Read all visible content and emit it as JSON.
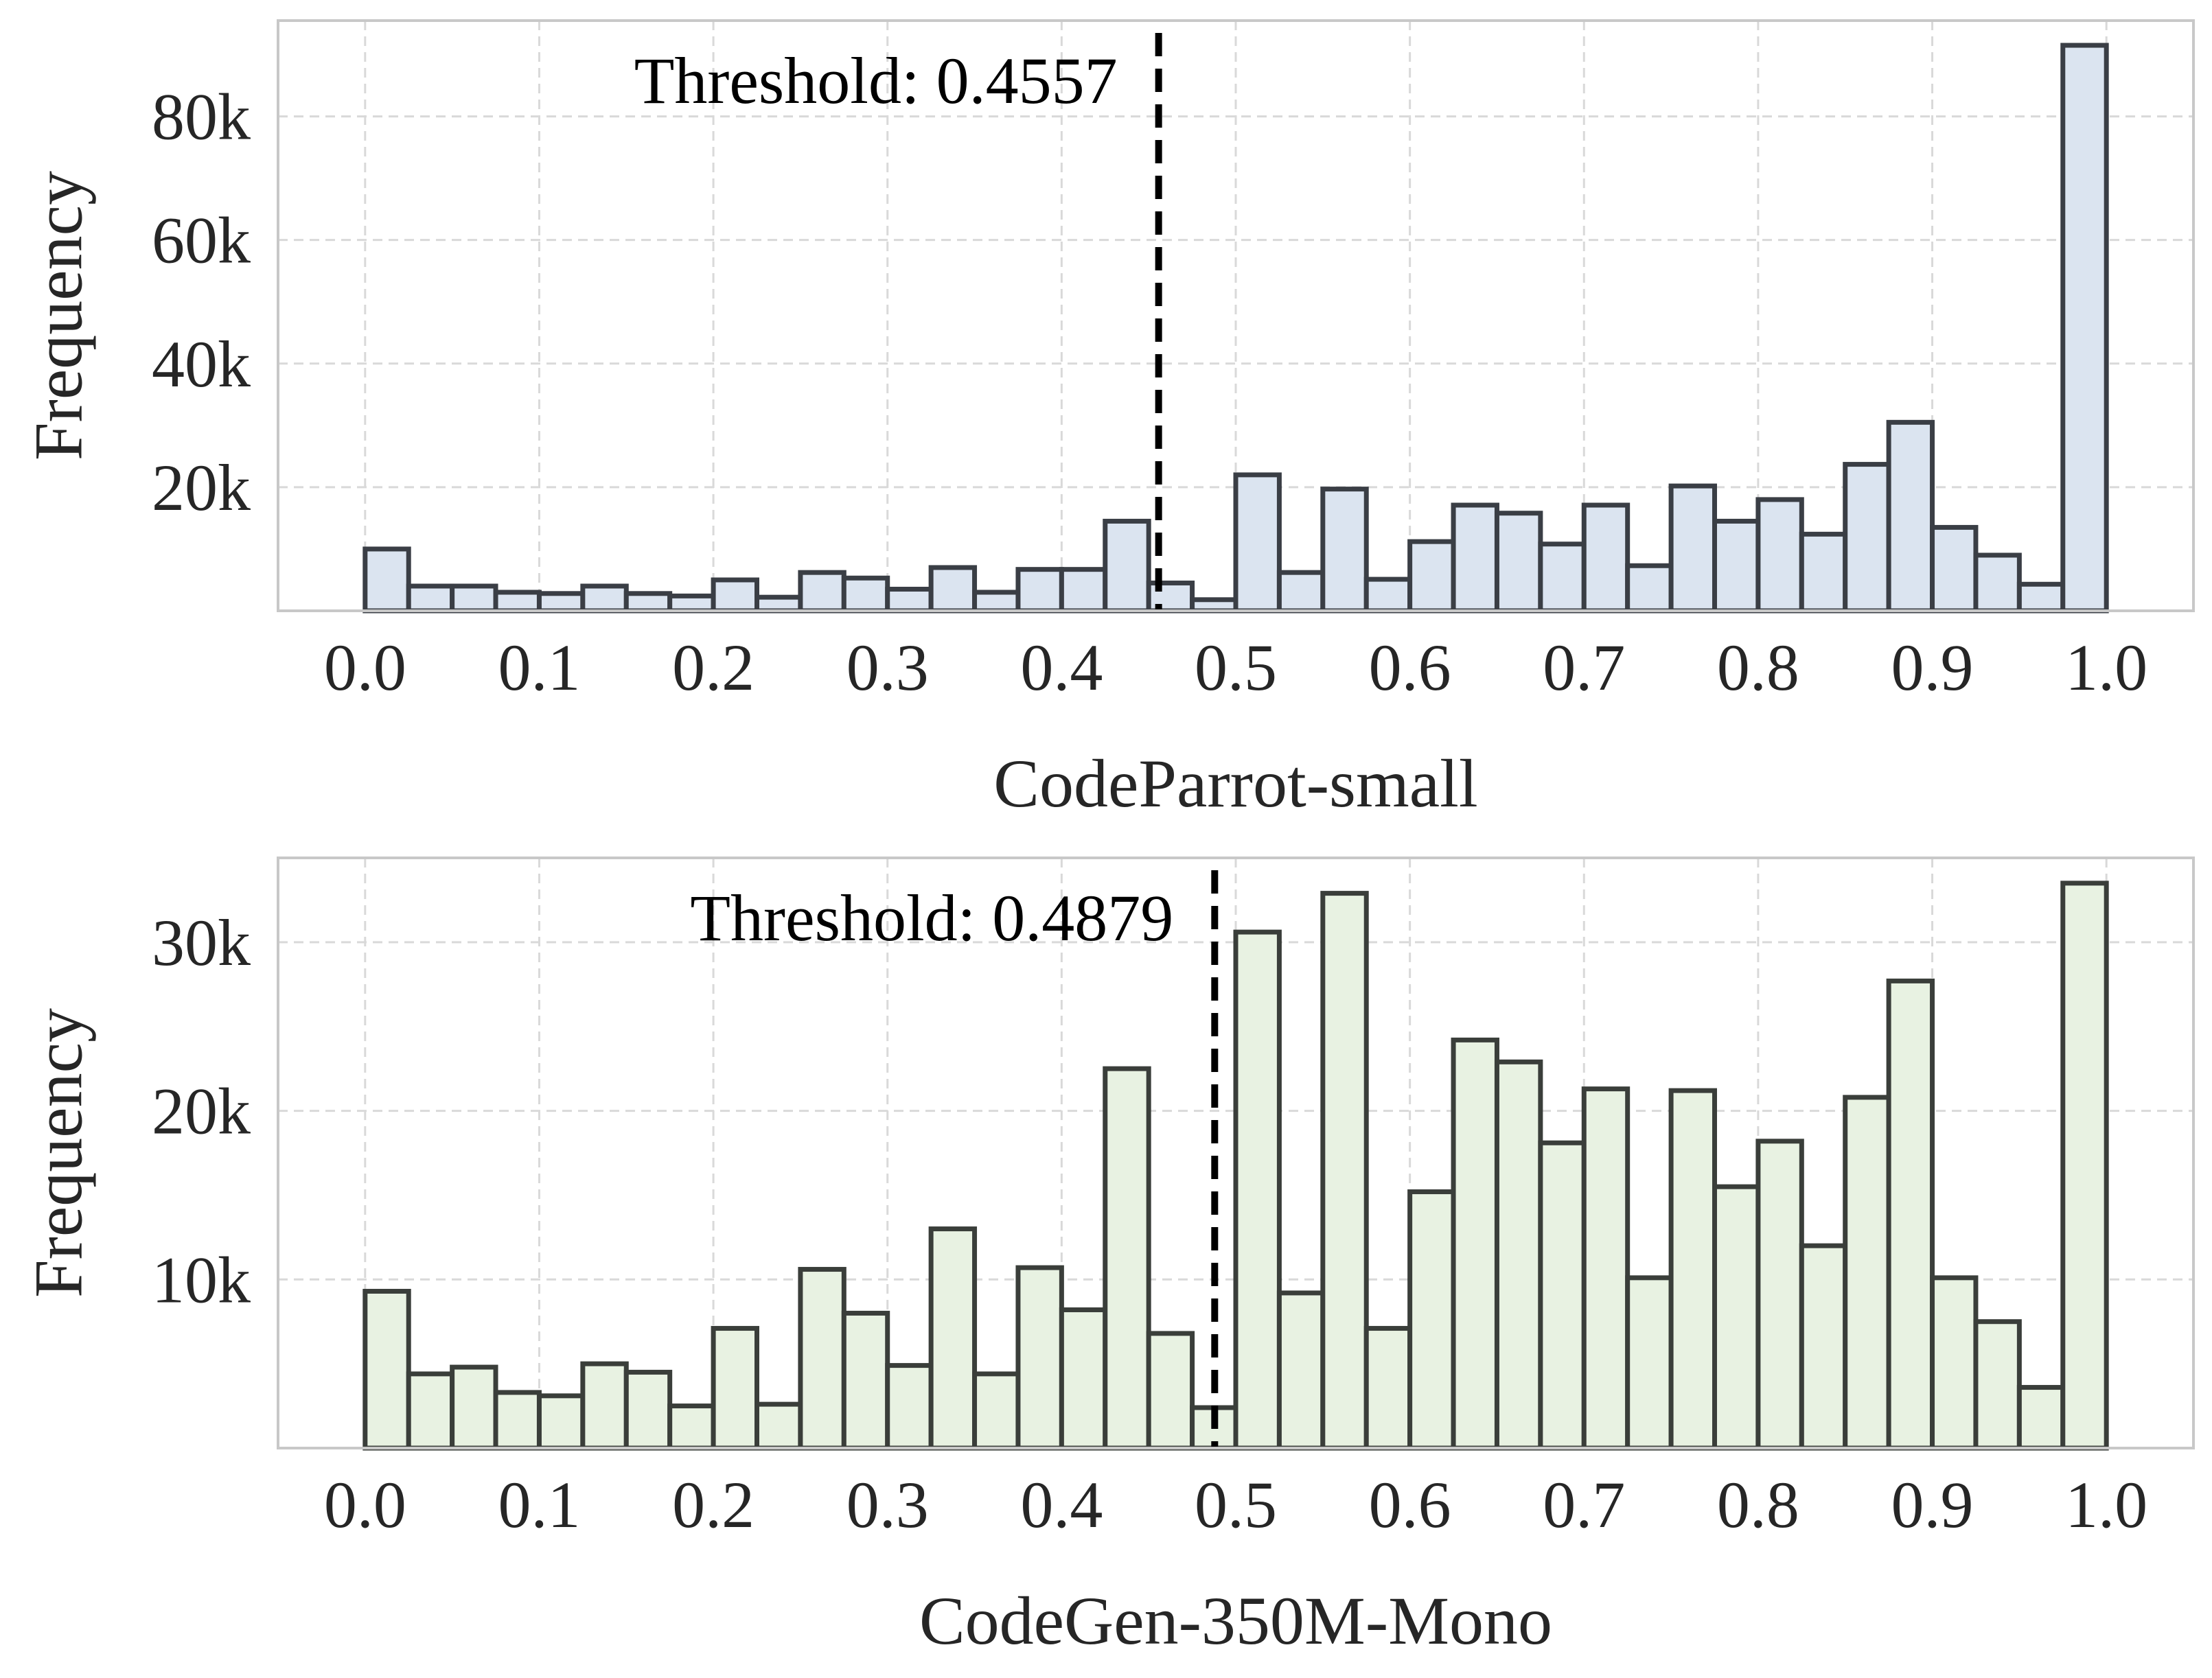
{
  "chart_data": [
    {
      "type": "bar",
      "xlabel": "CodeParrot-small",
      "ylabel": "Frequency",
      "xlim": [
        -0.05,
        1.05
      ],
      "ylim": [
        0,
        95500
      ],
      "x_ticks": [
        0.0,
        0.1,
        0.2,
        0.3,
        0.4,
        0.5,
        0.6,
        0.7,
        0.8,
        0.9,
        1.0
      ],
      "x_tick_labels": [
        "0.0",
        "0.1",
        "0.2",
        "0.3",
        "0.4",
        "0.5",
        "0.6",
        "0.7",
        "0.8",
        "0.9",
        "1.0"
      ],
      "y_ticks": [
        20000,
        40000,
        60000,
        80000
      ],
      "y_tick_labels": [
        "20k",
        "40k",
        "60k",
        "80k"
      ],
      "bin_range": [
        0.0,
        1.0
      ],
      "bin_count": 40,
      "values": [
        10000,
        4000,
        4000,
        3000,
        2800,
        4000,
        2800,
        2400,
        5000,
        2200,
        6200,
        5300,
        3500,
        7000,
        3000,
        6700,
        6700,
        14500,
        4500,
        1800,
        22000,
        6200,
        19700,
        5100,
        11200,
        17100,
        15800,
        10800,
        17100,
        7300,
        20200,
        14500,
        18000,
        12400,
        23700,
        30500,
        13500,
        9000,
        4300,
        91500
      ],
      "threshold": 0.4557,
      "threshold_label": "Threshold: 0.4557",
      "bar_color": "#dbe4f0",
      "edge_color": "#3a3e45",
      "grid": true
    },
    {
      "type": "bar",
      "xlabel": "CodeGen-350M-Mono",
      "ylabel": "Frequency",
      "xlim": [
        -0.05,
        1.05
      ],
      "ylim": [
        0,
        35000
      ],
      "x_ticks": [
        0.0,
        0.1,
        0.2,
        0.3,
        0.4,
        0.5,
        0.6,
        0.7,
        0.8,
        0.9,
        1.0
      ],
      "x_tick_labels": [
        "0.0",
        "0.1",
        "0.2",
        "0.3",
        "0.4",
        "0.5",
        "0.6",
        "0.7",
        "0.8",
        "0.9",
        "1.0"
      ],
      "y_ticks": [
        10000,
        20000,
        30000
      ],
      "y_tick_labels": [
        "10k",
        "20k",
        "30k"
      ],
      "bin_range": [
        0.0,
        1.0
      ],
      "bin_count": 40,
      "values": [
        9300,
        4400,
        4800,
        3300,
        3100,
        5000,
        4500,
        2500,
        7100,
        2600,
        10600,
        8000,
        4900,
        13000,
        4400,
        10700,
        8200,
        22500,
        6800,
        2400,
        30600,
        9200,
        32900,
        7100,
        15200,
        24200,
        22900,
        18100,
        21300,
        10100,
        21200,
        15500,
        18200,
        12000,
        20800,
        27700,
        10100,
        7500,
        3600,
        33500
      ],
      "threshold": 0.4879,
      "threshold_label": "Threshold: 0.4879",
      "bar_color": "#e8f2e2",
      "edge_color": "#3a3e3a",
      "grid": true
    }
  ]
}
